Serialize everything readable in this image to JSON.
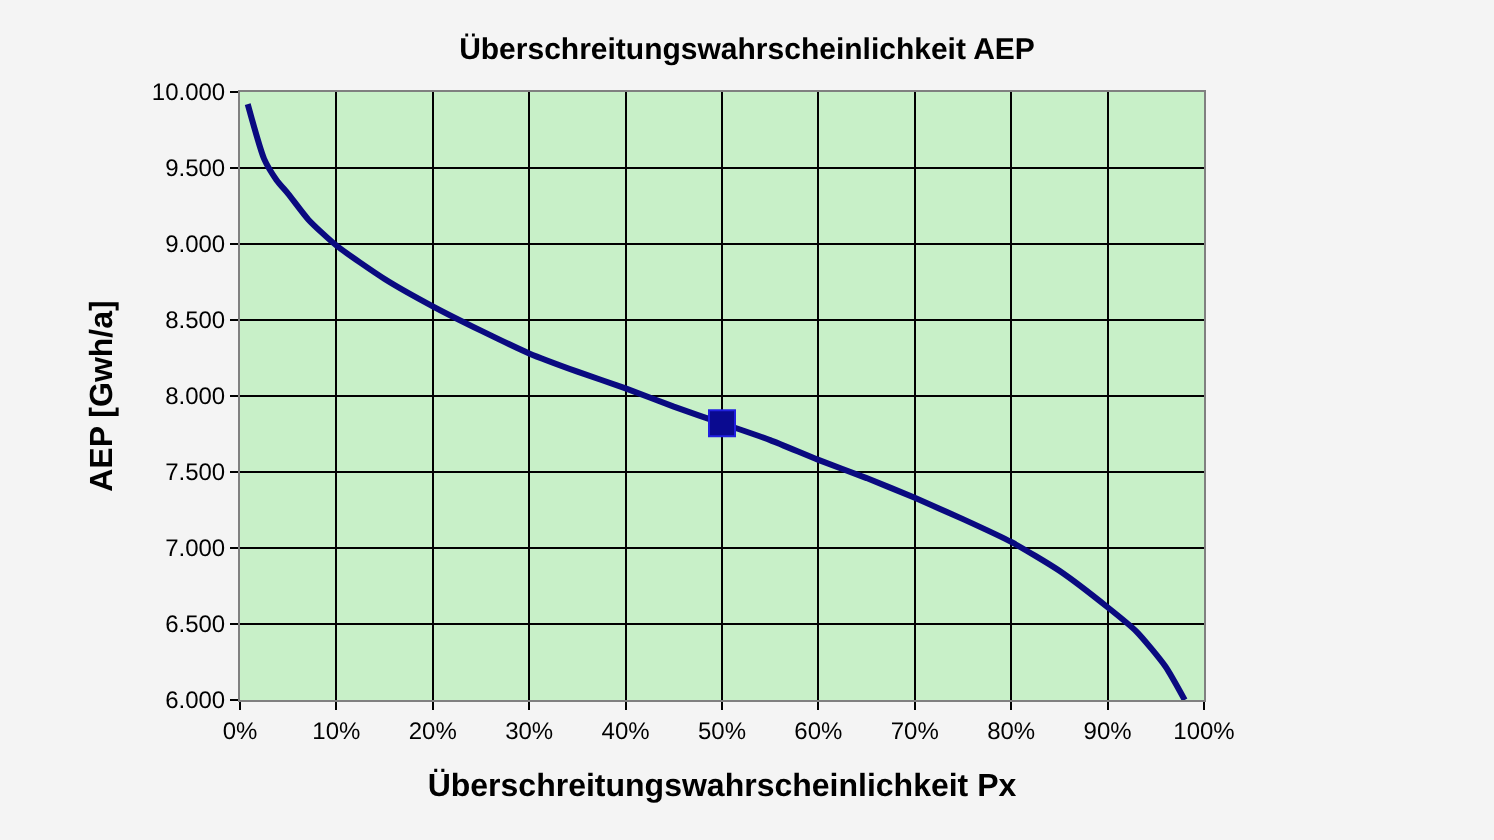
{
  "chart_data": {
    "type": "line",
    "title": "Überschreitungswahrscheinlichkeit AEP",
    "xlabel": "Überschreitungswahrscheinlichkeit Px",
    "ylabel": "AEP [Gwh/a]",
    "series": [
      {
        "color": "#0a0a80",
        "marker": "none",
        "x": [
          0.8,
          2.5,
          3.8,
          5,
          7.1,
          10,
          15,
          20,
          25,
          30,
          35,
          40,
          45,
          50,
          55,
          60,
          65,
          70,
          75,
          80,
          85,
          90,
          93,
          96,
          98
        ],
        "values": [
          9920,
          9560,
          9420,
          9330,
          9160,
          8990,
          8770,
          8590,
          8430,
          8280,
          8160,
          8050,
          7930,
          7820,
          7710,
          7580,
          7460,
          7330,
          7190,
          7040,
          6850,
          6610,
          6450,
          6220,
          6000
        ]
      },
      {
        "type": "scatter",
        "color": "#0a0a90",
        "marker": "square",
        "x": [
          50
        ],
        "values": [
          7820
        ]
      }
    ],
    "xlim": [
      0,
      100
    ],
    "xticks": [
      {
        "value": 0,
        "label": "0%"
      },
      {
        "value": 10,
        "label": "10%"
      },
      {
        "value": 20,
        "label": "20%"
      },
      {
        "value": 30,
        "label": "30%"
      },
      {
        "value": 40,
        "label": "40%"
      },
      {
        "value": 50,
        "label": "50%"
      },
      {
        "value": 60,
        "label": "60%"
      },
      {
        "value": 70,
        "label": "70%"
      },
      {
        "value": 80,
        "label": "80%"
      },
      {
        "value": 90,
        "label": "90%"
      },
      {
        "value": 100,
        "label": "100%"
      }
    ],
    "ylim": [
      6000,
      10000
    ],
    "yticks": [
      {
        "value": 6000,
        "label": "6.000"
      },
      {
        "value": 6500,
        "label": "6.500"
      },
      {
        "value": 7000,
        "label": "7.000"
      },
      {
        "value": 7500,
        "label": "7.500"
      },
      {
        "value": 8000,
        "label": "8.000"
      },
      {
        "value": 8500,
        "label": "8.500"
      },
      {
        "value": 9000,
        "label": "9.000"
      },
      {
        "value": 9500,
        "label": "9.500"
      },
      {
        "value": 10000,
        "label": "10.000"
      }
    ],
    "grid": true
  }
}
